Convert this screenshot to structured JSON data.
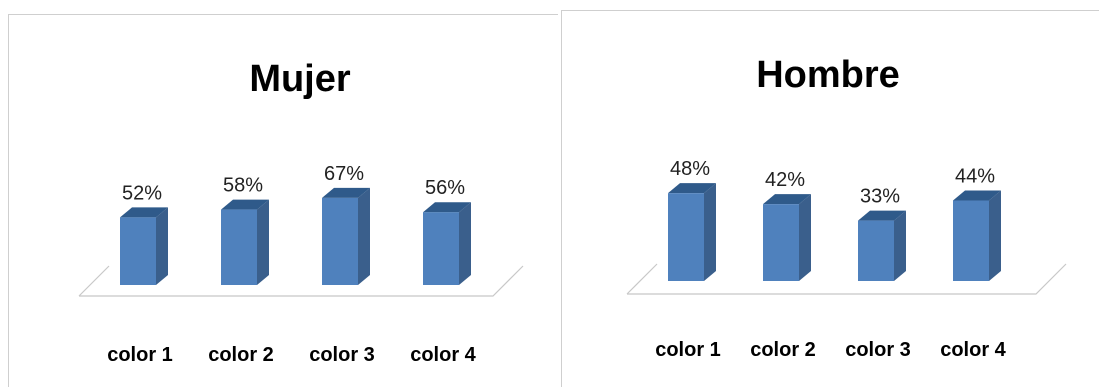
{
  "chart_data": [
    {
      "type": "bar",
      "title": "Mujer",
      "categories": [
        "color 1",
        "color 2",
        "color 3",
        "color 4"
      ],
      "values": [
        52,
        58,
        67,
        56
      ],
      "data_labels": [
        "52%",
        "58%",
        "67%",
        "56%"
      ],
      "ylim": [
        0,
        100
      ],
      "grid": false,
      "bar_color": "#4F81BD"
    },
    {
      "type": "bar",
      "title": "Hombre",
      "categories": [
        "color 1",
        "color 2",
        "color 3",
        "color 4"
      ],
      "values": [
        48,
        42,
        33,
        44
      ],
      "data_labels": [
        "48%",
        "42%",
        "33%",
        "44%"
      ],
      "ylim": [
        0,
        100
      ],
      "grid": false,
      "bar_color": "#4F81BD"
    }
  ]
}
